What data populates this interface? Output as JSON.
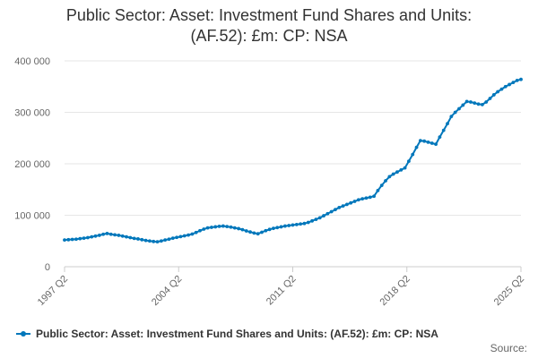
{
  "title_lines": [
    "Public Sector: Asset: Investment Fund Shares and Units:",
    "(AF.52): £m: CP: NSA"
  ],
  "source_label": "Source:",
  "colors": {
    "series": "#0077bb",
    "grid": "#e6e6e6",
    "axis": "#cccccc"
  },
  "chart_data": {
    "type": "line",
    "title": "Public Sector: Asset: Investment Fund Shares and Units: (AF.52): £m: CP: NSA",
    "xlabel": "",
    "ylabel": "",
    "x_start": "1997 Q2",
    "x_end": "2025 Q2",
    "x_tick_labels": [
      "1997 Q2",
      "2004 Q2",
      "2011 Q2",
      "2018 Q2",
      "2025 Q2"
    ],
    "y_tick_labels": [
      "0",
      "100 000",
      "200 000",
      "300 000",
      "400 000"
    ],
    "ylim": [
      0,
      400000
    ],
    "grid": true,
    "legend_position": "bottom",
    "series": [
      {
        "name": "Public Sector: Asset: Investment Fund Shares and Units: (AF.52): £m: CP: NSA",
        "values": [
          52000,
          52500,
          53000,
          53500,
          54500,
          55500,
          56500,
          58000,
          59500,
          61000,
          63000,
          64500,
          63000,
          62000,
          61000,
          59500,
          58000,
          56500,
          55000,
          54000,
          52500,
          51000,
          50000,
          49000,
          48500,
          50000,
          52000,
          53500,
          55500,
          57000,
          58500,
          60000,
          61500,
          63500,
          66500,
          70000,
          73000,
          75500,
          76500,
          77500,
          78500,
          79000,
          78000,
          77000,
          75500,
          74000,
          72000,
          69500,
          67500,
          65500,
          64000,
          67000,
          70000,
          72500,
          74500,
          76000,
          77500,
          79000,
          80000,
          81000,
          82000,
          83000,
          84000,
          86000,
          89000,
          92000,
          95000,
          99000,
          103000,
          107000,
          111000,
          115000,
          118000,
          121000,
          124000,
          127000,
          130000,
          132000,
          133500,
          135000,
          137000,
          148000,
          158000,
          167000,
          175000,
          180000,
          184000,
          188000,
          192000,
          205000,
          218000,
          232000,
          245000,
          244000,
          242000,
          240000,
          238000,
          252000,
          265000,
          278000,
          292000,
          300000,
          307000,
          314000,
          321000,
          320000,
          318000,
          316000,
          315000,
          320000,
          327000,
          334000,
          340000,
          345000,
          350000,
          354000,
          358000,
          362000,
          364000
        ]
      }
    ]
  }
}
